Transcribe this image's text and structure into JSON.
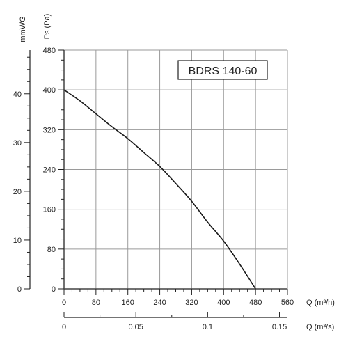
{
  "chart_data": {
    "type": "line",
    "title": "BDRS 140-60",
    "series": [
      {
        "values": [
          [
            0,
            400
          ],
          [
            40,
            378
          ],
          [
            80,
            352
          ],
          [
            120,
            326
          ],
          [
            160,
            302
          ],
          [
            200,
            274
          ],
          [
            240,
            246
          ],
          [
            280,
            212
          ],
          [
            320,
            176
          ],
          [
            360,
            134
          ],
          [
            400,
            96
          ],
          [
            440,
            50
          ],
          [
            480,
            0
          ]
        ]
      }
    ],
    "x_axis": {
      "label": "Q (m³/h)",
      "range": [
        0,
        560
      ],
      "ticks": [
        0,
        80,
        160,
        240,
        320,
        400,
        480,
        560
      ],
      "tick_labels": [
        "0",
        "80",
        "160",
        "240",
        "320",
        "400",
        "480",
        "560"
      ],
      "minor_step": 20
    },
    "x_axis_secondary": {
      "label": "Q (m³/s)",
      "range": [
        0,
        0.15556
      ],
      "ticks": [
        0,
        0.05,
        0.1,
        0.15
      ],
      "tick_labels": [
        "0",
        "0.05",
        "0.1",
        "0.15"
      ],
      "minor_step": 0.025
    },
    "y_axis": {
      "label": "Ps (Pa)",
      "range": [
        0,
        480
      ],
      "ticks": [
        0,
        80,
        160,
        240,
        320,
        400,
        480
      ],
      "tick_labels": [
        "0",
        "80",
        "160",
        "240",
        "320",
        "400",
        "480"
      ],
      "minor_step": 20
    },
    "y_axis_secondary": {
      "label": "mmWG",
      "range": [
        0,
        48.96
      ],
      "ticks": [
        0,
        10,
        20,
        30,
        40
      ],
      "tick_labels": [
        "0",
        "10",
        "20",
        "30",
        "40"
      ],
      "minor_step": 2.5
    },
    "grid": true,
    "legend": "none"
  },
  "colors": {
    "curve": "#1a1a1a",
    "grid": "#9a9a9a",
    "axis": "#222222",
    "frame": "#444444"
  }
}
